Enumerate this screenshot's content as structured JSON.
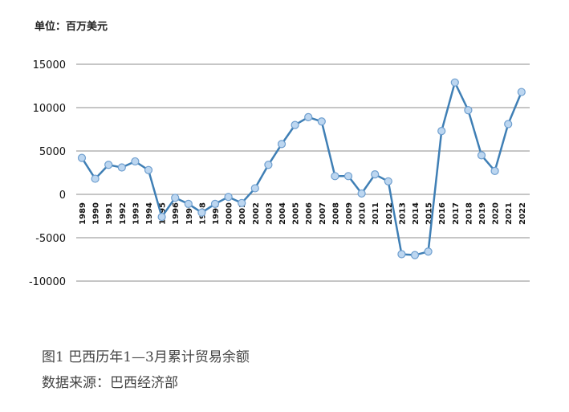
{
  "unit_label": "单位：百万美元",
  "caption": "图1 巴西历年1—3月累计贸易余额",
  "source": "数据来源：巴西经济部",
  "colors": {
    "line": "#3f7fb5",
    "marker_fill": "#bcd6f0",
    "grid": "#8c8c8c"
  },
  "chart_data": {
    "type": "line",
    "title": "",
    "xlabel": "",
    "ylabel": "",
    "ylim": [
      -10000,
      15000
    ],
    "yticks": [
      15000,
      10000,
      5000,
      0,
      -5000,
      -10000
    ],
    "ytick_labels": [
      "15000",
      "10000",
      "5000",
      "0",
      "-5000",
      "-10000"
    ],
    "grid": true,
    "categories": [
      "1989",
      "1990",
      "1991",
      "1992",
      "1993",
      "1994",
      "1995",
      "1996",
      "1997",
      "1998",
      "1999",
      "2000",
      "2001",
      "2002",
      "2003",
      "2004",
      "2005",
      "2006",
      "2007",
      "2008",
      "2009",
      "2010",
      "2011",
      "2012",
      "2013",
      "2014",
      "2015",
      "2016",
      "2017",
      "2018",
      "2019",
      "2020",
      "2021",
      "2022"
    ],
    "series": [
      {
        "values": [
          4200,
          1800,
          3400,
          3100,
          3800,
          2800,
          -2600,
          -400,
          -1100,
          -2100,
          -1100,
          -300,
          -1000,
          700,
          3400,
          5800,
          8000,
          8900,
          8400,
          2100,
          2100,
          100,
          2300,
          1500,
          -6900,
          -7000,
          -6600,
          7300,
          12900,
          9700,
          4500,
          2700,
          8100,
          11800
        ]
      }
    ]
  }
}
